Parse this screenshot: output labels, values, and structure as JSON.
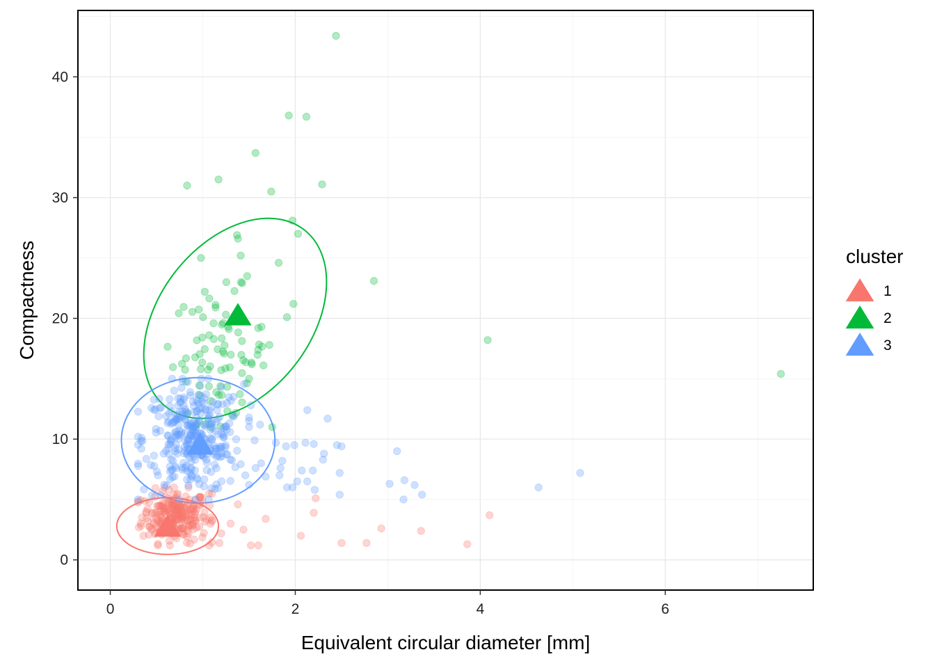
{
  "chart_data": {
    "type": "scatter",
    "title": "",
    "xlabel": "Equivalent circular diameter  [mm]",
    "ylabel": "Compactness",
    "xlim": [
      -0.35,
      7.6
    ],
    "ylim": [
      -2.5,
      45.5
    ],
    "x_ticks": [
      0,
      2,
      4,
      6
    ],
    "y_ticks": [
      0,
      10,
      20,
      30,
      40
    ],
    "grid": true,
    "legend": {
      "title": "cluster",
      "position": "right",
      "entries": [
        "1",
        "2",
        "3"
      ]
    },
    "point_alpha": 0.3,
    "series": [
      {
        "name": "1",
        "color": "#F8766D",
        "centroid": {
          "x": 0.62,
          "y": 2.8
        },
        "ellipse": {
          "cx": 0.62,
          "cy": 2.8,
          "rx_data": 0.55,
          "ry_data": 2.35,
          "angle_deg": 0
        },
        "cloud": {
          "x_min": 0.3,
          "x_max": 1.1,
          "y_min": 1.2,
          "y_max": 6.0,
          "n": 240
        },
        "points": [
          {
            "x": 4.1,
            "y": 3.7
          },
          {
            "x": 3.86,
            "y": 1.3
          },
          {
            "x": 3.36,
            "y": 2.4
          },
          {
            "x": 2.93,
            "y": 2.6
          },
          {
            "x": 2.77,
            "y": 1.4
          },
          {
            "x": 2.5,
            "y": 1.4
          },
          {
            "x": 2.22,
            "y": 5.1
          },
          {
            "x": 2.2,
            "y": 3.9
          },
          {
            "x": 2.06,
            "y": 2.0
          },
          {
            "x": 1.68,
            "y": 3.4
          },
          {
            "x": 1.6,
            "y": 1.2
          },
          {
            "x": 1.52,
            "y": 1.2
          },
          {
            "x": 1.44,
            "y": 2.5
          },
          {
            "x": 1.38,
            "y": 4.6
          },
          {
            "x": 1.3,
            "y": 3.0
          },
          {
            "x": 1.2,
            "y": 2.2
          },
          {
            "x": 1.18,
            "y": 1.4
          },
          {
            "x": 1.1,
            "y": 5.5
          },
          {
            "x": 1.08,
            "y": 3.5
          },
          {
            "x": 1.07,
            "y": 1.2
          }
        ]
      },
      {
        "name": "2",
        "color": "#00BA38",
        "centroid": {
          "x": 1.38,
          "y": 20.3
        },
        "ellipse": {
          "cx": 1.35,
          "cy": 20.0,
          "rx_data": 0.82,
          "ry_data": 9.3,
          "angle_deg": 38
        },
        "cloud": {
          "x_min": 0.62,
          "x_max": 1.75,
          "y_min": 11.0,
          "y_max": 23.0,
          "n": 80
        },
        "points": [
          {
            "x": 2.44,
            "y": 43.4
          },
          {
            "x": 1.93,
            "y": 36.8
          },
          {
            "x": 2.12,
            "y": 36.7
          },
          {
            "x": 1.57,
            "y": 33.7
          },
          {
            "x": 1.17,
            "y": 31.5
          },
          {
            "x": 0.83,
            "y": 31.0
          },
          {
            "x": 2.29,
            "y": 31.1
          },
          {
            "x": 1.74,
            "y": 30.5
          },
          {
            "x": 1.97,
            "y": 28.1
          },
          {
            "x": 2.03,
            "y": 27.0
          },
          {
            "x": 1.37,
            "y": 26.9
          },
          {
            "x": 1.38,
            "y": 26.6
          },
          {
            "x": 1.41,
            "y": 25.2
          },
          {
            "x": 0.98,
            "y": 25.0
          },
          {
            "x": 1.82,
            "y": 24.6
          },
          {
            "x": 1.48,
            "y": 23.5
          },
          {
            "x": 2.85,
            "y": 23.1
          },
          {
            "x": 1.98,
            "y": 21.2
          },
          {
            "x": 1.91,
            "y": 20.1
          },
          {
            "x": 4.08,
            "y": 18.2
          },
          {
            "x": 7.25,
            "y": 15.4
          },
          {
            "x": 1.6,
            "y": 19.2
          },
          {
            "x": 1.72,
            "y": 17.8
          },
          {
            "x": 1.53,
            "y": 16.2
          },
          {
            "x": 1.5,
            "y": 15.0
          }
        ]
      },
      {
        "name": "3",
        "color": "#619CFF",
        "centroid": {
          "x": 0.97,
          "y": 9.6
        },
        "ellipse": {
          "cx": 0.95,
          "cy": 9.9,
          "rx_data": 0.83,
          "ry_data": 5.2,
          "angle_deg": 0
        },
        "cloud": {
          "x_min": 0.3,
          "x_max": 1.5,
          "y_min": 5.0,
          "y_max": 15.0,
          "n": 320
        },
        "points": [
          {
            "x": 5.08,
            "y": 7.2
          },
          {
            "x": 4.63,
            "y": 6.0
          },
          {
            "x": 3.37,
            "y": 5.4
          },
          {
            "x": 3.29,
            "y": 6.2
          },
          {
            "x": 3.18,
            "y": 6.6
          },
          {
            "x": 3.17,
            "y": 5.0
          },
          {
            "x": 3.02,
            "y": 6.3
          },
          {
            "x": 3.1,
            "y": 9.0
          },
          {
            "x": 2.35,
            "y": 11.7
          },
          {
            "x": 2.13,
            "y": 12.4
          },
          {
            "x": 2.45,
            "y": 9.5
          },
          {
            "x": 2.5,
            "y": 9.4
          },
          {
            "x": 2.31,
            "y": 8.8
          },
          {
            "x": 2.3,
            "y": 8.3
          },
          {
            "x": 2.48,
            "y": 7.2
          },
          {
            "x": 2.48,
            "y": 5.4
          },
          {
            "x": 2.19,
            "y": 7.4
          },
          {
            "x": 2.13,
            "y": 6.5
          },
          {
            "x": 2.07,
            "y": 7.4
          },
          {
            "x": 2.2,
            "y": 9.6
          },
          {
            "x": 2.11,
            "y": 9.7
          },
          {
            "x": 1.99,
            "y": 9.5
          },
          {
            "x": 1.9,
            "y": 9.4
          },
          {
            "x": 1.86,
            "y": 8.2
          },
          {
            "x": 1.84,
            "y": 7.6
          },
          {
            "x": 1.83,
            "y": 7.0
          },
          {
            "x": 1.79,
            "y": 9.7
          },
          {
            "x": 1.68,
            "y": 6.9
          },
          {
            "x": 1.91,
            "y": 6.0
          },
          {
            "x": 1.97,
            "y": 6.0
          },
          {
            "x": 2.02,
            "y": 6.5
          },
          {
            "x": 2.21,
            "y": 5.8
          },
          {
            "x": 1.63,
            "y": 8.0
          },
          {
            "x": 1.57,
            "y": 7.6
          },
          {
            "x": 1.46,
            "y": 7.0
          },
          {
            "x": 1.56,
            "y": 9.9
          },
          {
            "x": 1.62,
            "y": 11.2
          },
          {
            "x": 1.52,
            "y": 12.8
          }
        ]
      }
    ]
  }
}
